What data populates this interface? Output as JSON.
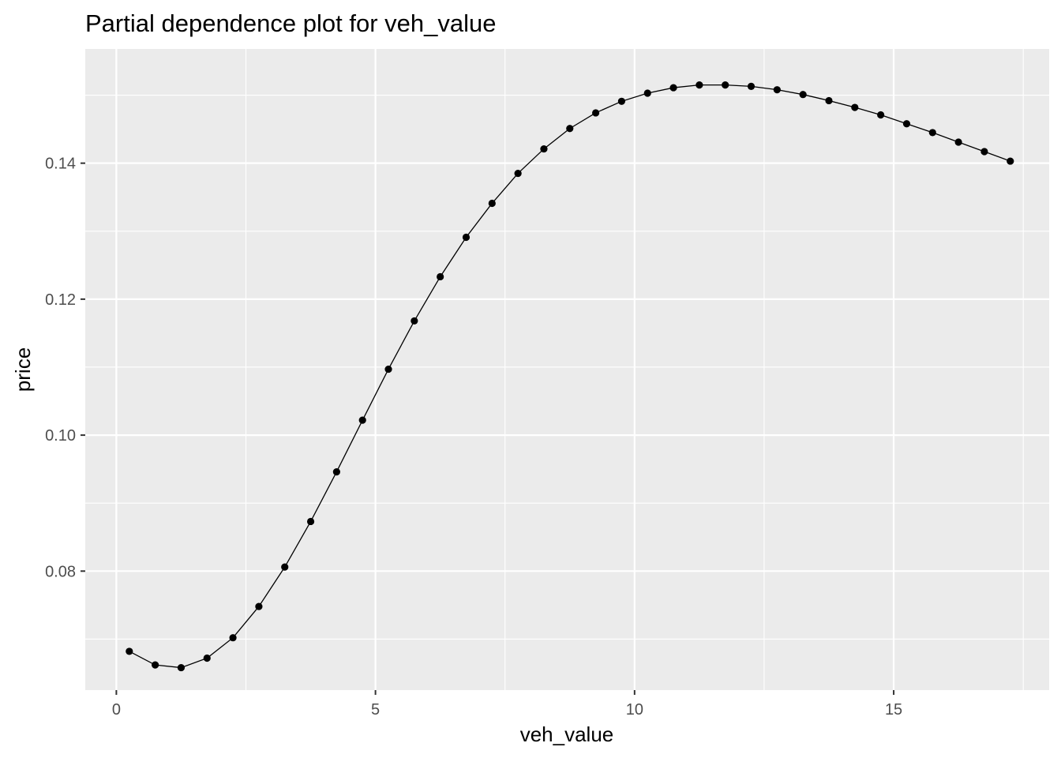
{
  "chart_data": {
    "type": "line",
    "title": "Partial dependence plot for veh_value",
    "xlabel": "veh_value",
    "ylabel": "price",
    "xlim": [
      -0.6,
      18.0
    ],
    "ylim": [
      0.0625,
      0.1568
    ],
    "x_ticks": [
      0,
      5,
      10,
      15
    ],
    "x_tick_labels": [
      "0",
      "5",
      "10",
      "15"
    ],
    "y_ticks": [
      0.08,
      0.1,
      0.12,
      0.14
    ],
    "y_tick_labels": [
      "0.08",
      "0.10",
      "0.12",
      "0.14"
    ],
    "grid": true,
    "markers": true,
    "series": [
      {
        "x": [
          0.25,
          0.75,
          1.25,
          1.75,
          2.25,
          2.75,
          3.25,
          3.75,
          4.25,
          4.75,
          5.25,
          5.75,
          6.25,
          6.75,
          7.25,
          7.75,
          8.25,
          8.75,
          9.25,
          9.75,
          10.25,
          10.75,
          11.25,
          11.75,
          12.25,
          12.75,
          13.25,
          13.75,
          14.25,
          14.75,
          15.25,
          15.75,
          16.25,
          16.75,
          17.25
        ],
        "values": [
          0.0682,
          0.0662,
          0.0658,
          0.0672,
          0.0702,
          0.0748,
          0.0806,
          0.0873,
          0.0946,
          0.1022,
          0.1097,
          0.1168,
          0.1233,
          0.1291,
          0.1341,
          0.1385,
          0.1421,
          0.1451,
          0.1474,
          0.1491,
          0.1503,
          0.1511,
          0.1515,
          0.1515,
          0.1513,
          0.1508,
          0.1501,
          0.1492,
          0.1482,
          0.1471,
          0.1458,
          0.1445,
          0.1431,
          0.1417,
          0.1403
        ]
      }
    ]
  }
}
